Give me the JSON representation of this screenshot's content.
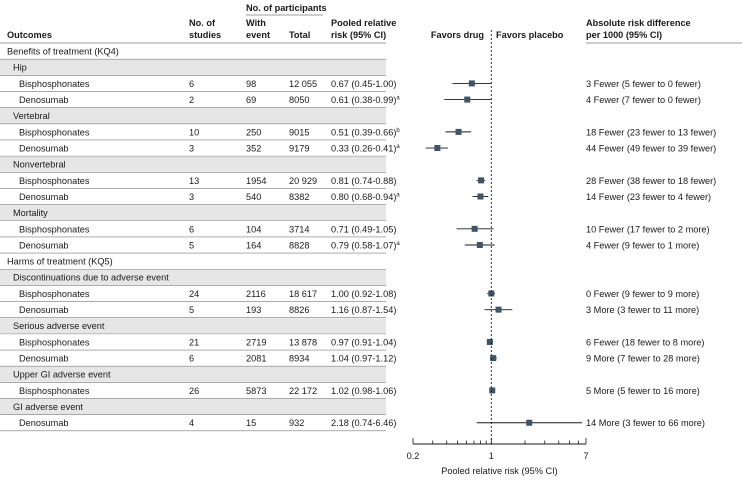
{
  "header": {
    "outcomes": "Outcomes",
    "studies_line1": "No. of",
    "studies_line2": "studies",
    "participants": "No. of participants",
    "with_event_line1": "With",
    "with_event_line2": "event",
    "total": "Total",
    "rr_line1": "Pooled relative",
    "rr_line2": "risk (95% CI)",
    "favors_drug": "Favors drug",
    "favors_placebo": "Favors placebo",
    "ard_line1": "Absolute risk difference",
    "ard_line2": "per 1000 (95% CI)"
  },
  "sections": [
    {
      "label": "Benefits of treatment (KQ4)"
    },
    {
      "label": "Harms of treatment (KQ5)"
    }
  ],
  "rows": [
    {
      "kind": "section",
      "label": "Benefits of treatment (KQ4)"
    },
    {
      "kind": "group",
      "label": "Hip"
    },
    {
      "kind": "data",
      "label": "Bisphosphonates",
      "studies": "6",
      "events": "98",
      "total": "12 055",
      "rr_text": "0.67 (0.45-1.00)",
      "sup": "",
      "ard": "3 Fewer (5 fewer to 0 fewer)",
      "rr": 0.67,
      "lo": 0.45,
      "hi": 1.0
    },
    {
      "kind": "data",
      "label": "Denosumab",
      "studies": "2",
      "events": "69",
      "total": "8050",
      "rr_text": "0.61 (0.38-0.99)",
      "sup": "a",
      "ard": "4 Fewer (7 fewer to 0 fewer)",
      "rr": 0.61,
      "lo": 0.38,
      "hi": 0.99
    },
    {
      "kind": "group",
      "label": "Vertebral"
    },
    {
      "kind": "data",
      "label": "Bisphosphonates",
      "studies": "10",
      "events": "250",
      "total": "9015",
      "rr_text": "0.51 (0.39-0.66)",
      "sup": "b",
      "ard": "18 Fewer (23 fewer to 13 fewer)",
      "rr": 0.51,
      "lo": 0.39,
      "hi": 0.66
    },
    {
      "kind": "data",
      "label": "Denosumab",
      "studies": "3",
      "events": "352",
      "total": "9179",
      "rr_text": "0.33 (0.26-0.41)",
      "sup": "a",
      "ard": "44 Fewer (49 fewer to 39 fewer)",
      "rr": 0.33,
      "lo": 0.26,
      "hi": 0.41
    },
    {
      "kind": "group",
      "label": "Nonvertebral"
    },
    {
      "kind": "data",
      "label": "Bisphosphonates",
      "studies": "13",
      "events": "1954",
      "total": "20 929",
      "rr_text": "0.81 (0.74-0.88)",
      "sup": "",
      "ard": "28 Fewer (38 fewer to 18 fewer)",
      "rr": 0.81,
      "lo": 0.74,
      "hi": 0.88
    },
    {
      "kind": "data",
      "label": "Denosumab",
      "studies": "3",
      "events": "540",
      "total": "8382",
      "rr_text": "0.80 (0.68-0.94)",
      "sup": "a",
      "ard": "14 Fewer (23 fewer to 4 fewer)",
      "rr": 0.8,
      "lo": 0.68,
      "hi": 0.94
    },
    {
      "kind": "group",
      "label": "Mortality"
    },
    {
      "kind": "data",
      "label": "Bisphosphonates",
      "studies": "6",
      "events": "104",
      "total": "3714",
      "rr_text": "0.71 (0.49-1.05)",
      "sup": "",
      "ard": "10 Fewer (17 fewer to 2 more)",
      "rr": 0.71,
      "lo": 0.49,
      "hi": 1.05
    },
    {
      "kind": "data",
      "label": "Denosumab",
      "studies": "5",
      "events": "164",
      "total": "8828",
      "rr_text": "0.79 (0.58-1.07)",
      "sup": "a",
      "ard": "4 Fewer (9 fewer to 1 more)",
      "rr": 0.79,
      "lo": 0.58,
      "hi": 1.07
    },
    {
      "kind": "section",
      "label": "Harms of treatment (KQ5)"
    },
    {
      "kind": "group",
      "label": "Discontinuations due to adverse event"
    },
    {
      "kind": "data",
      "label": "Bisphosphonates",
      "studies": "24",
      "events": "2116",
      "total": "18 617",
      "rr_text": "1.00 (0.92-1.08)",
      "sup": "",
      "ard": "0 Fewer (9 fewer to 9 more)",
      "rr": 1.0,
      "lo": 0.92,
      "hi": 1.08
    },
    {
      "kind": "data",
      "label": "Denosumab",
      "studies": "5",
      "events": "193",
      "total": "8826",
      "rr_text": "1.16 (0.87-1.54)",
      "sup": "",
      "ard": "3 More (3 fewer to 11 more)",
      "rr": 1.16,
      "lo": 0.87,
      "hi": 1.54
    },
    {
      "kind": "group",
      "label": "Serious adverse event"
    },
    {
      "kind": "data",
      "label": "Bisphosphonates",
      "studies": "21",
      "events": "2719",
      "total": "13 878",
      "rr_text": "0.97 (0.91-1.04)",
      "sup": "",
      "ard": "6 Fewer (18 fewer to 8 more)",
      "rr": 0.97,
      "lo": 0.91,
      "hi": 1.04
    },
    {
      "kind": "data",
      "label": "Denosumab",
      "studies": "6",
      "events": "2081",
      "total": "8934",
      "rr_text": "1.04 (0.97-1.12)",
      "sup": "",
      "ard": "9 More (7 fewer to 28 more)",
      "rr": 1.04,
      "lo": 0.97,
      "hi": 1.12
    },
    {
      "kind": "group",
      "label": "Upper GI adverse event"
    },
    {
      "kind": "data",
      "label": "Bisphosphonates",
      "studies": "26",
      "events": "5873",
      "total": "22 172",
      "rr_text": "1.02 (0.98-1.06)",
      "sup": "",
      "ard": "5 More (5 fewer to 16 more)",
      "rr": 1.02,
      "lo": 0.98,
      "hi": 1.06
    },
    {
      "kind": "group",
      "label": "GI adverse event"
    },
    {
      "kind": "data",
      "label": "Denosumab",
      "studies": "4",
      "events": "15",
      "total": "932",
      "rr_text": "2.18 (0.74-6.46)",
      "sup": "",
      "ard": "14 More (3 fewer to 66 more)",
      "rr": 2.18,
      "lo": 0.74,
      "hi": 6.46
    }
  ],
  "chart_data": {
    "type": "scatter",
    "subtype": "forest-plot",
    "xlabel": "Pooled relative risk (95% CI)",
    "x_scale": "log",
    "xlim": [
      0.2,
      7
    ],
    "x_ticks": [
      "0.2",
      "1",
      "7"
    ],
    "reference_line": 1,
    "legend": [
      "Favors drug",
      "Favors placebo"
    ],
    "categories": [
      "Hip – Bisphosphonates",
      "Hip – Denosumab",
      "Vertebral – Bisphosphonates",
      "Vertebral – Denosumab",
      "Nonvertebral – Bisphosphonates",
      "Nonvertebral – Denosumab",
      "Mortality – Bisphosphonates",
      "Mortality – Denosumab",
      "Discontinuations due to adverse event – Bisphosphonates",
      "Discontinuations due to adverse event – Denosumab",
      "Serious adverse event – Bisphosphonates",
      "Serious adverse event – Denosumab",
      "Upper GI adverse event – Bisphosphonates",
      "GI adverse event – Denosumab"
    ],
    "values": [
      0.67,
      0.61,
      0.51,
      0.33,
      0.81,
      0.8,
      0.71,
      0.79,
      1.0,
      1.16,
      0.97,
      1.04,
      1.02,
      2.18
    ],
    "ci_low": [
      0.45,
      0.38,
      0.39,
      0.26,
      0.74,
      0.68,
      0.49,
      0.58,
      0.92,
      0.87,
      0.91,
      0.97,
      0.98,
      0.74
    ],
    "ci_high": [
      1.0,
      0.99,
      0.66,
      0.41,
      0.88,
      0.94,
      1.05,
      1.07,
      1.08,
      1.54,
      1.04,
      1.12,
      1.06,
      6.46
    ],
    "colors": {
      "marker": "#3d5566",
      "line": "#1a1a1a",
      "rule": "#7a7a7a",
      "band": "#e6e6e6"
    }
  }
}
